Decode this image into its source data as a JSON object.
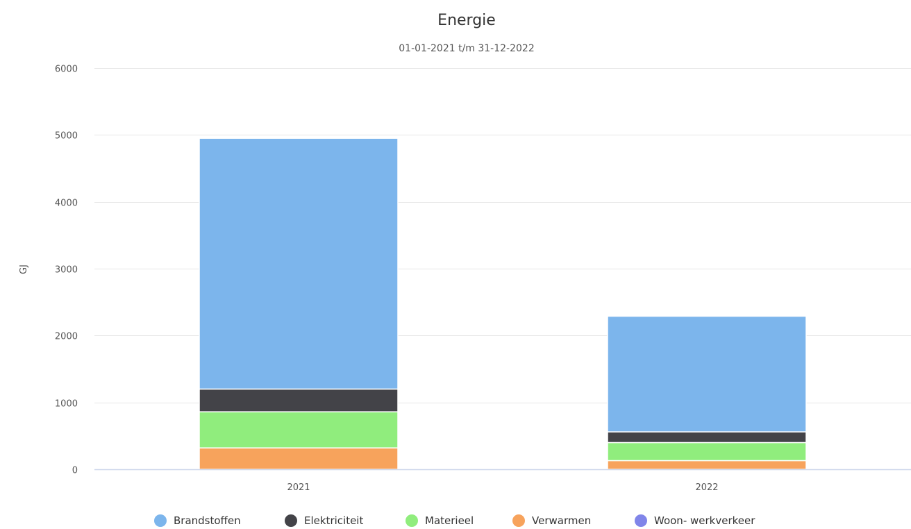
{
  "chart_data": {
    "type": "bar",
    "stacked": true,
    "title": "Energie",
    "subtitle": "01-01-2021 t/m 31-12-2022",
    "ylabel": "GJ",
    "xlabel": "",
    "categories": [
      "2021",
      "2022"
    ],
    "ylim": [
      0,
      6000
    ],
    "yticks": [
      0,
      1000,
      2000,
      3000,
      4000,
      5000,
      6000
    ],
    "grid": true,
    "legend_position": "bottom",
    "series": [
      {
        "name": "Verwarmen",
        "color": "#f7a35c",
        "values": [
          320,
          130
        ]
      },
      {
        "name": "Materieel",
        "color": "#90ed7d",
        "values": [
          540,
          270
        ]
      },
      {
        "name": "Elektriciteit",
        "color": "#434348",
        "values": [
          340,
          160
        ]
      },
      {
        "name": "Brandstoffen",
        "color": "#7cb5ec",
        "values": [
          3750,
          1730
        ]
      },
      {
        "name": "Woon- werkverkeer",
        "color": "#8085e9",
        "values": [
          0,
          10
        ]
      }
    ],
    "legend_order": [
      "Brandstoffen",
      "Elektriciteit",
      "Materieel",
      "Verwarmen",
      "Woon- werkverkeer"
    ]
  }
}
